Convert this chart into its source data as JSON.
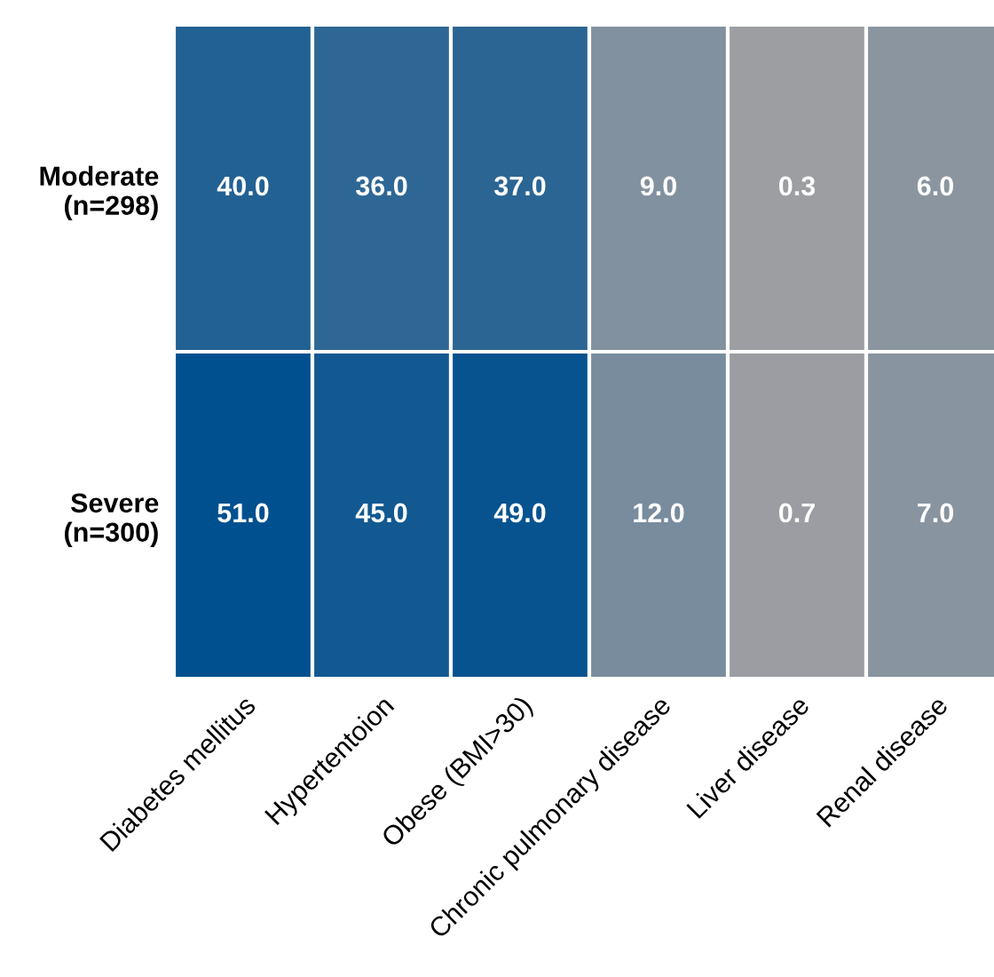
{
  "chart_data": {
    "type": "heatmap",
    "categories": [
      "Diabetes mellitus",
      "Hypertentoion",
      "Obese (BMI>30)",
      "Chronic pulmonary disease",
      "Liver disease",
      "Renal disease"
    ],
    "y_categories": [
      "Moderate\n(n=298)",
      "Severe\n(n=300)"
    ],
    "cells": [
      [
        40.0,
        36.0,
        37.0,
        9.0,
        0.3,
        6.0
      ],
      [
        51.0,
        45.0,
        49.0,
        12.0,
        0.7,
        7.0
      ]
    ],
    "cell_labels": [
      [
        "40.0",
        "36.0",
        "37.0",
        "9.0",
        "0.3",
        "6.0"
      ],
      [
        "51.0",
        "45.0",
        "49.0",
        "12.0",
        "0.7",
        "7.0"
      ]
    ]
  }
}
